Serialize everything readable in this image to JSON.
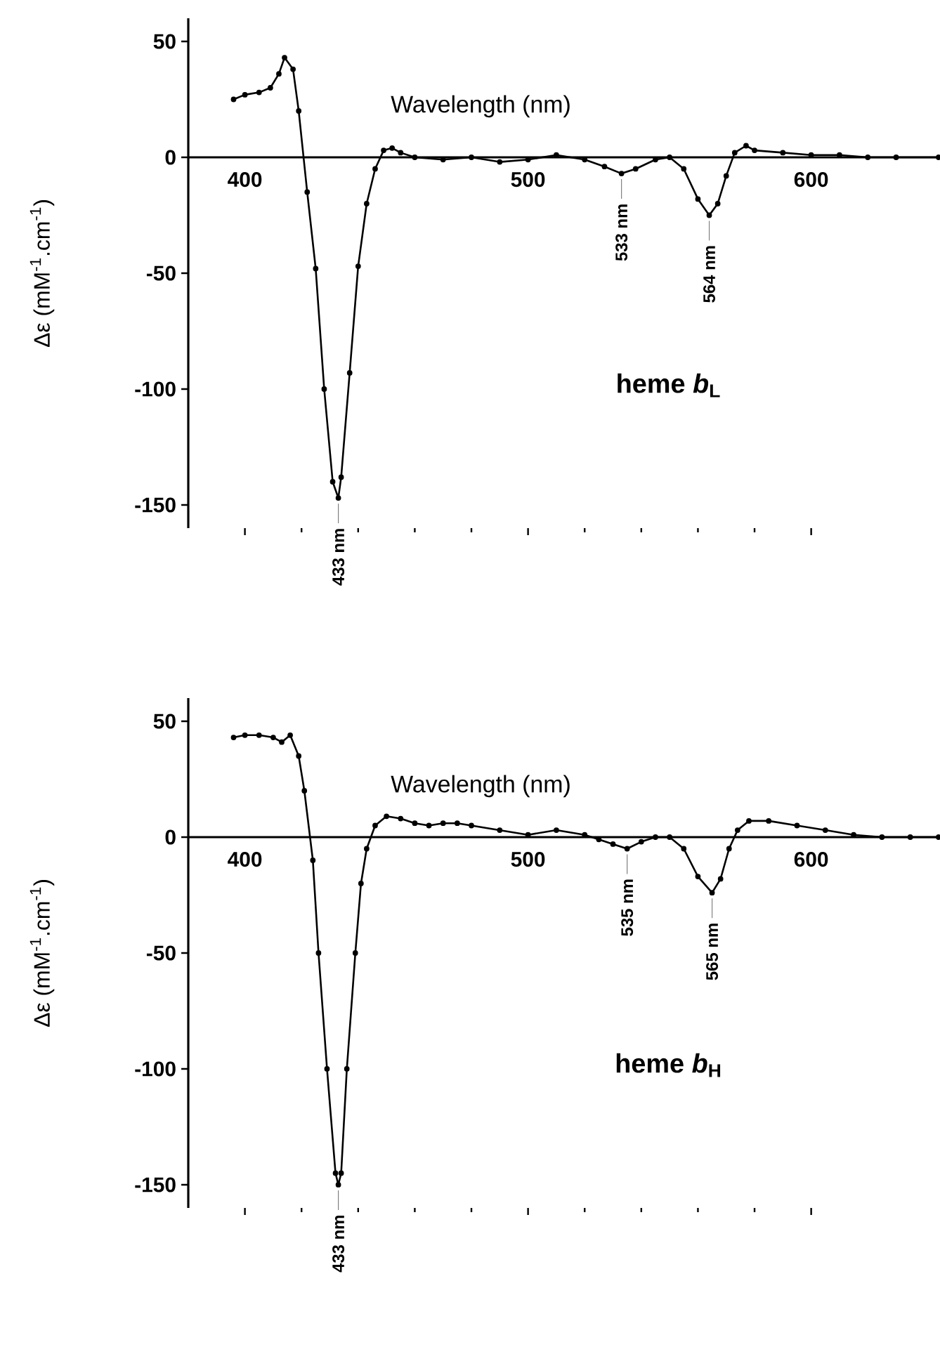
{
  "chart_data": [
    {
      "type": "line",
      "xlabel": "Wavelength (nm)",
      "ylabel": "Δε (mM$^{-1}$.cm$^{-1}$)",
      "xlim": [
        380,
        645
      ],
      "ylim": [
        -160,
        60
      ],
      "xticks": [
        400,
        500,
        600
      ],
      "yticks": [
        50,
        0,
        -50,
        -100,
        -150
      ],
      "marker": "circle",
      "color": "#000000",
      "x": [
        396,
        400,
        405,
        409,
        412,
        414,
        417,
        419,
        422,
        425,
        428,
        431,
        433,
        434,
        437,
        440,
        443,
        446,
        449,
        452,
        455,
        460,
        470,
        480,
        490,
        500,
        510,
        520,
        527,
        533,
        538,
        545,
        550,
        555,
        560,
        564,
        567,
        570,
        573,
        577,
        580,
        590,
        600,
        610,
        620,
        630,
        645
      ],
      "values": [
        25,
        27,
        28,
        30,
        36,
        43,
        38,
        20,
        -15,
        -48,
        -100,
        -140,
        -147,
        -138,
        -93,
        -47,
        -20,
        -5,
        3,
        4,
        2,
        0,
        -1,
        0,
        -2,
        -1,
        1,
        -1,
        -4,
        -7,
        -5,
        -1,
        0,
        -5,
        -18,
        -25,
        -20,
        -8,
        2,
        5,
        3,
        2,
        1,
        1,
        0,
        0,
        0
      ],
      "annotations": [
        {
          "text": "433 nm",
          "x": 433,
          "y": -147
        },
        {
          "text": "533 nm",
          "x": 533,
          "y": -7
        },
        {
          "text": "564 nm",
          "x": 564,
          "y": -25
        },
        "heme *b*$_{L}$"
      ]
    },
    {
      "type": "line",
      "xlabel": "Wavelength (nm)",
      "ylabel": "Δε (mM$^{-1}$.cm$^{-1}$)",
      "xlim": [
        380,
        645
      ],
      "ylim": [
        -160,
        60
      ],
      "xticks": [
        400,
        500,
        600
      ],
      "yticks": [
        50,
        0,
        -50,
        -100,
        -150
      ],
      "marker": "circle",
      "color": "#000000",
      "x": [
        396,
        400,
        405,
        410,
        413,
        416,
        419,
        421,
        424,
        426,
        429,
        432,
        433,
        434,
        436,
        439,
        441,
        443,
        446,
        450,
        455,
        460,
        465,
        470,
        475,
        480,
        490,
        500,
        510,
        520,
        525,
        530,
        535,
        540,
        545,
        550,
        555,
        560,
        565,
        568,
        571,
        574,
        578,
        585,
        595,
        605,
        615,
        625,
        635,
        645
      ],
      "values": [
        43,
        44,
        44,
        43,
        41,
        44,
        35,
        20,
        -10,
        -50,
        -100,
        -145,
        -150,
        -145,
        -100,
        -50,
        -20,
        -5,
        5,
        9,
        8,
        6,
        5,
        6,
        6,
        5,
        3,
        1,
        3,
        1,
        -1,
        -3,
        -5,
        -2,
        0,
        0,
        -5,
        -17,
        -24,
        -18,
        -5,
        3,
        7,
        7,
        5,
        3,
        1,
        0,
        0,
        0
      ],
      "annotations": [
        {
          "text": "433 nm",
          "x": 433,
          "y": -150
        },
        {
          "text": "535 nm",
          "x": 535,
          "y": -5
        },
        {
          "text": "565 nm",
          "x": 565,
          "y": -24
        },
        "heme *b*$_{H}$"
      ]
    }
  ]
}
